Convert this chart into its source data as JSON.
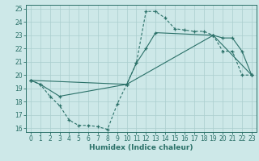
{
  "xlabel": "Humidex (Indice chaleur)",
  "bg_color": "#cde8e8",
  "line_color": "#2a7068",
  "grid_color": "#aacece",
  "xlim": [
    -0.5,
    23.5
  ],
  "ylim": [
    15.7,
    25.3
  ],
  "xticks": [
    0,
    1,
    2,
    3,
    4,
    5,
    6,
    7,
    8,
    9,
    10,
    11,
    12,
    13,
    14,
    15,
    16,
    17,
    18,
    19,
    20,
    21,
    22,
    23
  ],
  "yticks": [
    16,
    17,
    18,
    19,
    20,
    21,
    22,
    23,
    24,
    25
  ],
  "line1_x": [
    0,
    1,
    2,
    3,
    4,
    5,
    6,
    7,
    8,
    9,
    10,
    11,
    12,
    13,
    14,
    15,
    16,
    17,
    18,
    19,
    20,
    21,
    22,
    23
  ],
  "line1_y": [
    19.6,
    19.3,
    18.4,
    17.7,
    16.6,
    16.2,
    16.2,
    16.1,
    15.9,
    17.8,
    19.3,
    20.9,
    24.8,
    24.8,
    24.3,
    23.5,
    23.4,
    23.3,
    23.3,
    23.0,
    21.8,
    21.8,
    20.0,
    20.0
  ],
  "line2_x": [
    0,
    1,
    3,
    10,
    11,
    12,
    13,
    19,
    20,
    21,
    22,
    23
  ],
  "line2_y": [
    19.6,
    19.3,
    18.4,
    19.3,
    20.9,
    22.0,
    23.2,
    23.0,
    22.8,
    22.8,
    21.8,
    20.0
  ],
  "line3_x": [
    0,
    10,
    19,
    23
  ],
  "line3_y": [
    19.6,
    19.3,
    23.0,
    20.0
  ]
}
